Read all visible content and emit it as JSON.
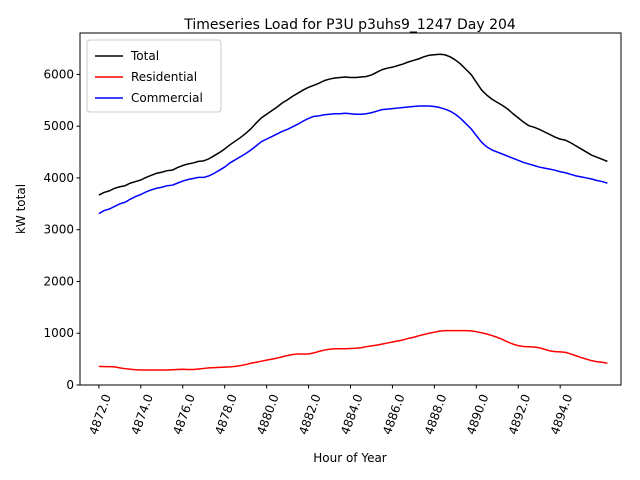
{
  "chart_data": {
    "type": "line",
    "title": "Timeseries Load for P3U p3uhs9_1247  Day 204",
    "xlabel": "Hour of Year",
    "ylabel": "kW total",
    "xlim": [
      4871.1,
      4896.9
    ],
    "ylim": [
      0,
      6800
    ],
    "xticks": [
      4872,
      4874,
      4876,
      4878,
      4880,
      4882,
      4884,
      4886,
      4888,
      4890,
      4892,
      4894
    ],
    "xtick_labels": [
      "4872.0",
      "4874.0",
      "4876.0",
      "4878.0",
      "4880.0",
      "4882.0",
      "4884.0",
      "4886.0",
      "4888.0",
      "4890.0",
      "4892.0",
      "4894.0"
    ],
    "yticks": [
      0,
      1000,
      2000,
      3000,
      4000,
      5000,
      6000
    ],
    "ytick_labels": [
      "0",
      "1000",
      "2000",
      "3000",
      "4000",
      "5000",
      "6000"
    ],
    "legend_position": "top-left",
    "x_start": 4872.0,
    "x_step": 0.25,
    "series": [
      {
        "name": "Total",
        "color": "#000000",
        "values": [
          3670,
          3720,
          3750,
          3800,
          3830,
          3850,
          3900,
          3930,
          3960,
          4010,
          4050,
          4090,
          4110,
          4140,
          4150,
          4200,
          4240,
          4270,
          4290,
          4320,
          4330,
          4370,
          4430,
          4490,
          4560,
          4640,
          4710,
          4780,
          4860,
          4950,
          5060,
          5160,
          5230,
          5300,
          5370,
          5450,
          5510,
          5580,
          5640,
          5700,
          5750,
          5790,
          5830,
          5880,
          5910,
          5930,
          5940,
          5950,
          5940,
          5940,
          5950,
          5960,
          5990,
          6040,
          6090,
          6120,
          6140,
          6170,
          6200,
          6240,
          6270,
          6300,
          6340,
          6370,
          6380,
          6390,
          6380,
          6340,
          6280,
          6200,
          6100,
          6000,
          5850,
          5700,
          5600,
          5520,
          5460,
          5400,
          5330,
          5240,
          5160,
          5080,
          5010,
          4980,
          4940,
          4890,
          4840,
          4790,
          4750,
          4730,
          4680,
          4620,
          4560,
          4500,
          4440,
          4400,
          4360,
          4320
        ]
      },
      {
        "name": "Residential",
        "color": "#ff0000",
        "values": [
          360,
          355,
          355,
          350,
          330,
          315,
          305,
          295,
          290,
          290,
          290,
          290,
          290,
          290,
          295,
          300,
          305,
          300,
          300,
          310,
          320,
          330,
          335,
          340,
          345,
          350,
          360,
          375,
          395,
          420,
          440,
          460,
          480,
          500,
          520,
          545,
          570,
          590,
          600,
          600,
          600,
          620,
          650,
          675,
          690,
          700,
          700,
          700,
          705,
          710,
          720,
          740,
          755,
          770,
          790,
          810,
          830,
          850,
          870,
          900,
          920,
          950,
          975,
          1000,
          1020,
          1040,
          1050,
          1050,
          1050,
          1050,
          1050,
          1045,
          1030,
          1010,
          985,
          955,
          920,
          880,
          830,
          790,
          760,
          745,
          740,
          735,
          720,
          690,
          660,
          645,
          640,
          630,
          600,
          565,
          530,
          500,
          470,
          450,
          440,
          420
        ]
      },
      {
        "name": "Commercial",
        "color": "#0000ff",
        "values": [
          3310,
          3370,
          3400,
          3450,
          3500,
          3530,
          3590,
          3640,
          3680,
          3730,
          3770,
          3800,
          3820,
          3850,
          3860,
          3900,
          3940,
          3970,
          3990,
          4010,
          4010,
          4040,
          4090,
          4150,
          4210,
          4290,
          4350,
          4410,
          4470,
          4540,
          4620,
          4700,
          4750,
          4800,
          4850,
          4900,
          4940,
          4990,
          5040,
          5100,
          5150,
          5190,
          5200,
          5220,
          5230,
          5240,
          5240,
          5250,
          5240,
          5230,
          5230,
          5240,
          5260,
          5290,
          5320,
          5330,
          5340,
          5350,
          5360,
          5370,
          5380,
          5390,
          5390,
          5390,
          5380,
          5360,
          5330,
          5290,
          5230,
          5150,
          5050,
          4950,
          4820,
          4690,
          4600,
          4540,
          4500,
          4460,
          4420,
          4380,
          4340,
          4300,
          4270,
          4240,
          4210,
          4190,
          4170,
          4150,
          4120,
          4100,
          4070,
          4040,
          4020,
          4000,
          3980,
          3950,
          3930,
          3900
        ]
      }
    ]
  }
}
